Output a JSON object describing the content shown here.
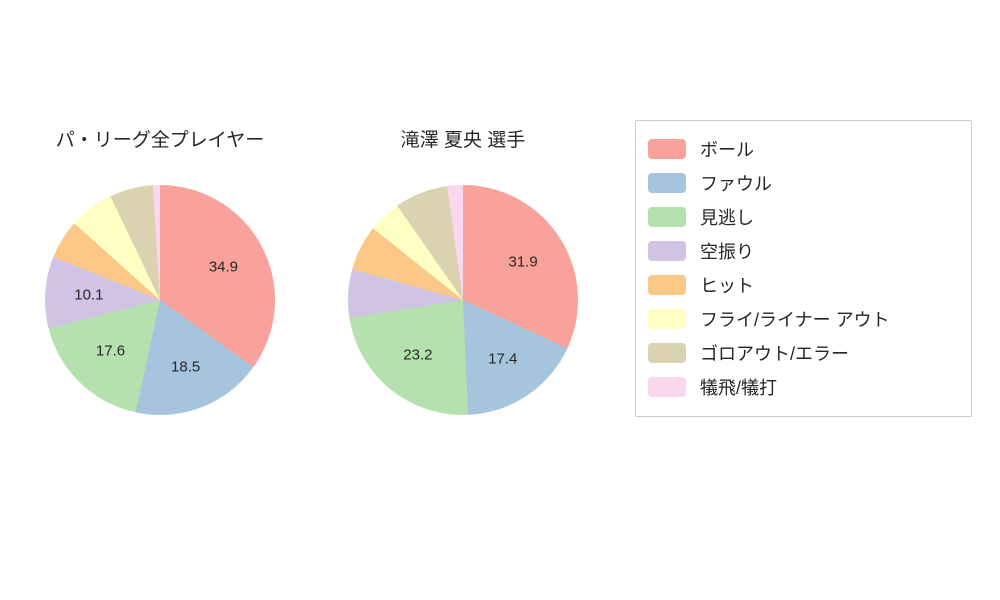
{
  "figure": {
    "background": "#ffffff"
  },
  "chart_data": [
    {
      "type": "pie",
      "title": "パ・リーグ全プレイヤー",
      "categories": [
        "ボール",
        "ファウル",
        "見逃し",
        "空振り",
        "ヒット",
        "フライ/ライナー アウト",
        "ゴロアウト/エラー",
        "犠飛/犠打"
      ],
      "values": [
        34.9,
        18.5,
        17.6,
        10.1,
        5.5,
        6.3,
        6.1,
        1.0
      ],
      "value_labels": [
        "34.9",
        "18.5",
        "17.6",
        "10.1",
        "",
        "",
        "",
        ""
      ],
      "start_angle": "top",
      "direction": "clockwise",
      "units": "percent"
    },
    {
      "type": "pie",
      "title": "滝澤 夏央  選手",
      "categories": [
        "ボール",
        "ファウル",
        "見逃し",
        "空振り",
        "ヒット",
        "フライ/ライナー アウト",
        "ゴロアウト/エラー",
        "犠飛/犠打"
      ],
      "values": [
        31.9,
        17.4,
        23.2,
        6.8,
        6.4,
        4.6,
        7.5,
        2.2
      ],
      "value_labels": [
        "31.9",
        "17.4",
        "23.2",
        "",
        "",
        "",
        "",
        ""
      ],
      "start_angle": "top",
      "direction": "clockwise",
      "units": "percent"
    }
  ],
  "legend": {
    "position": "right",
    "items": [
      {
        "label": "ボール",
        "color": "#F9A29C"
      },
      {
        "label": "ファウル",
        "color": "#A7C4DE"
      },
      {
        "label": "見逃し",
        "color": "#B5E1AE"
      },
      {
        "label": "空振り",
        "color": "#D0C3E4"
      },
      {
        "label": "ヒット",
        "color": "#FBC888"
      },
      {
        "label": "フライ/ライナー アウト",
        "color": "#FFFFC4"
      },
      {
        "label": "ゴロアウト/エラー",
        "color": "#DBD2B2"
      },
      {
        "label": "犠飛/犠打",
        "color": "#FBD7EF"
      }
    ]
  }
}
